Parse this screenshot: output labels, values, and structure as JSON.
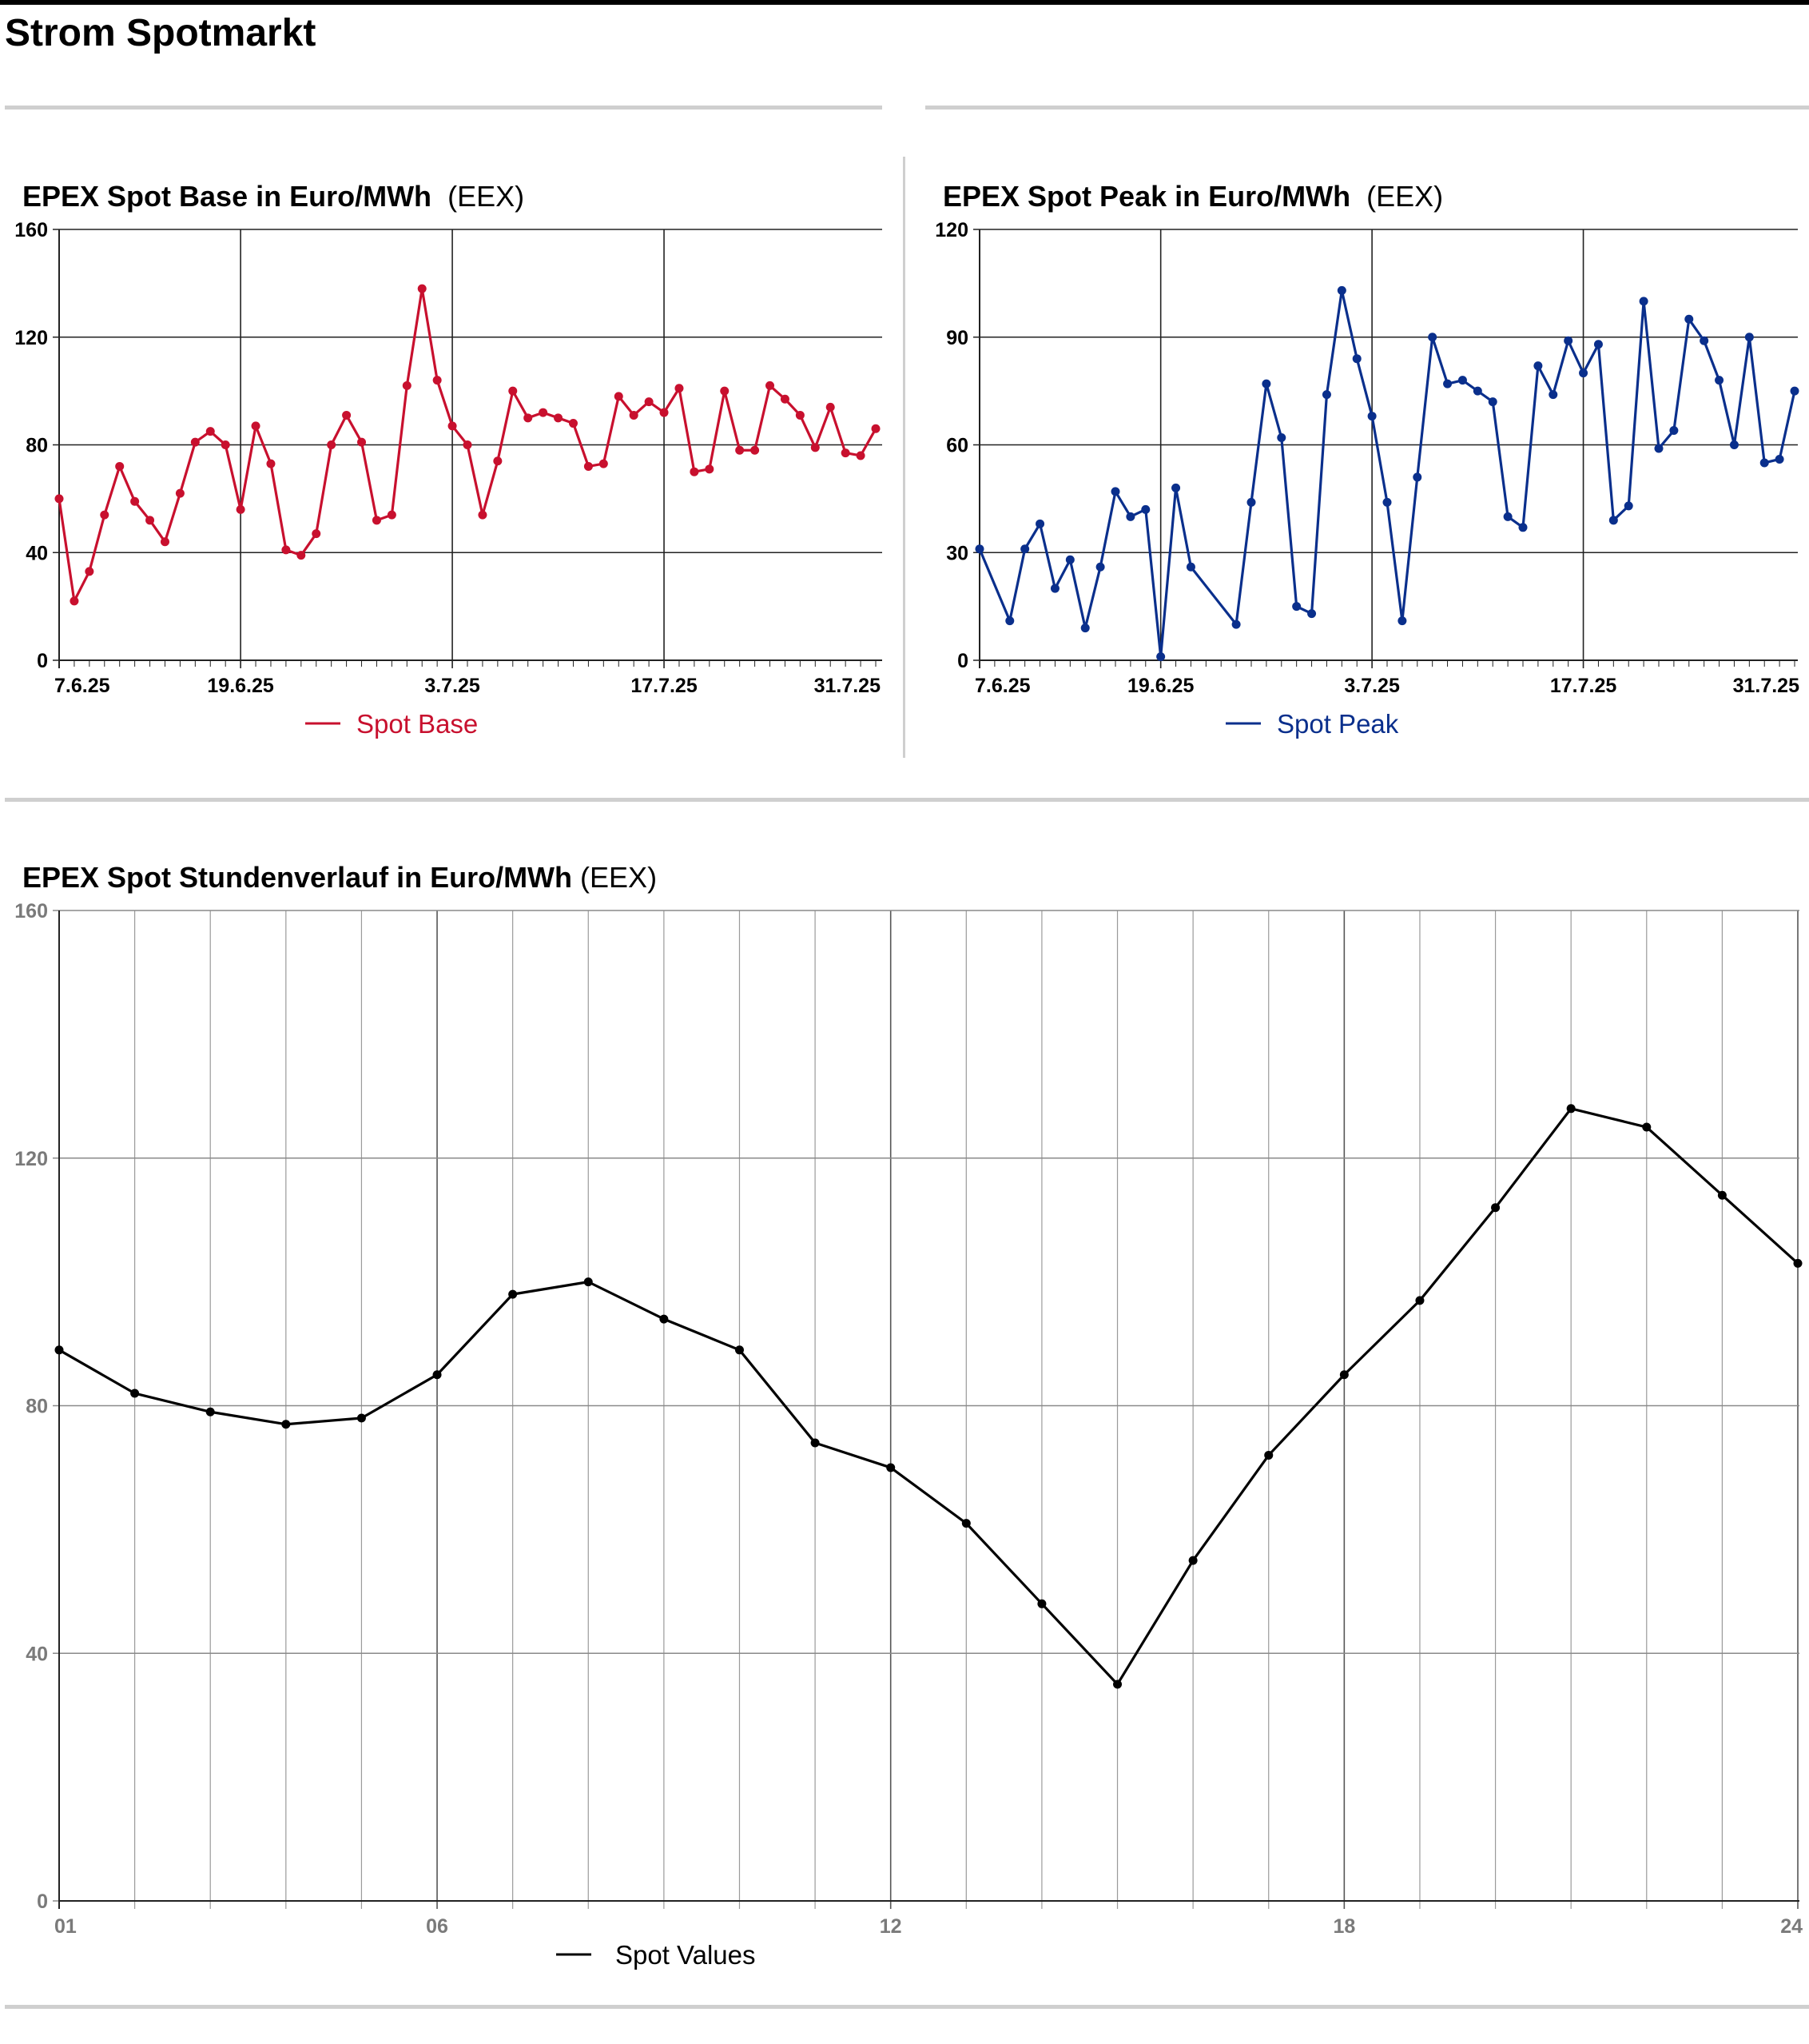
{
  "page": {
    "title": "Strom Spotmarkt"
  },
  "base_panel": {
    "title_bold": "EPEX Spot Base in Euro/MWh",
    "title_source": "(EEX)",
    "legend": "Spot Base",
    "color": "#c8102e"
  },
  "peak_panel": {
    "title_bold": "EPEX Spot Peak in Euro/MWh",
    "title_source": "(EEX)",
    "legend": "Spot Peak",
    "color": "#0a2f8c"
  },
  "hourly_panel": {
    "title_bold": "EPEX Spot Stundenverlauf in Euro/MWh",
    "title_source": "(EEX)",
    "legend": "Spot Values",
    "color": "#000000"
  },
  "chart_data": [
    {
      "type": "line",
      "xlim": [
        0,
        54
      ],
      "ylim": [
        0,
        160
      ],
      "yticks": [
        0,
        40,
        80,
        120,
        160
      ],
      "xticks": [
        {
          "x": 0,
          "label": "7.6.25"
        },
        {
          "x": 12,
          "label": "19.6.25"
        },
        {
          "x": 26,
          "label": "3.7.25"
        },
        {
          "x": 40,
          "label": "17.7.25"
        },
        {
          "x": 54,
          "label": "31.7.25"
        }
      ],
      "series": [
        {
          "name": "Spot Base",
          "values": [
            60,
            22,
            33,
            54,
            72,
            59,
            52,
            44,
            62,
            81,
            85,
            80,
            56,
            87,
            73,
            41,
            39,
            47,
            80,
            91,
            81,
            52,
            54,
            102,
            138,
            104,
            87,
            80,
            54,
            74,
            100,
            90,
            92,
            90,
            88,
            72,
            73,
            98,
            91,
            96,
            92,
            101,
            70,
            71,
            100,
            78,
            78,
            102,
            97,
            91,
            79,
            94,
            77,
            76,
            86
          ]
        }
      ]
    },
    {
      "type": "line",
      "xlim": [
        0,
        54
      ],
      "ylim": [
        0,
        120
      ],
      "yticks": [
        0,
        30,
        60,
        90,
        120
      ],
      "xticks": [
        {
          "x": 0,
          "label": "7.6.25"
        },
        {
          "x": 12,
          "label": "19.6.25"
        },
        {
          "x": 26,
          "label": "3.7.25"
        },
        {
          "x": 40,
          "label": "17.7.25"
        },
        {
          "x": 54,
          "label": "31.7.25"
        }
      ],
      "series": [
        {
          "name": "Spot Peak",
          "values": [
            31,
            null,
            11,
            31,
            38,
            20,
            28,
            9,
            26,
            47,
            40,
            42,
            1,
            48,
            26,
            null,
            null,
            10,
            44,
            77,
            62,
            15,
            13,
            74,
            103,
            84,
            68,
            44,
            11,
            51,
            90,
            77,
            78,
            75,
            72,
            40,
            37,
            82,
            74,
            89,
            80,
            88,
            39,
            43,
            100,
            59,
            64,
            95,
            89,
            78,
            60,
            90,
            55,
            56,
            75
          ]
        }
      ]
    },
    {
      "type": "line",
      "xlim": [
        1,
        24
      ],
      "ylim": [
        0,
        160
      ],
      "yticks": [
        0,
        40,
        80,
        120,
        160
      ],
      "xticks": [
        {
          "x": 1,
          "label": "01"
        },
        {
          "x": 6,
          "label": "06"
        },
        {
          "x": 12,
          "label": "12"
        },
        {
          "x": 18,
          "label": "18"
        },
        {
          "x": 24,
          "label": "24"
        }
      ],
      "series": [
        {
          "name": "Spot Values",
          "values": [
            89,
            82,
            79,
            77,
            78,
            85,
            98,
            100,
            94,
            89,
            74,
            70,
            61,
            48,
            35,
            55,
            72,
            85,
            97,
            112,
            128,
            125,
            114,
            103
          ]
        }
      ]
    }
  ]
}
